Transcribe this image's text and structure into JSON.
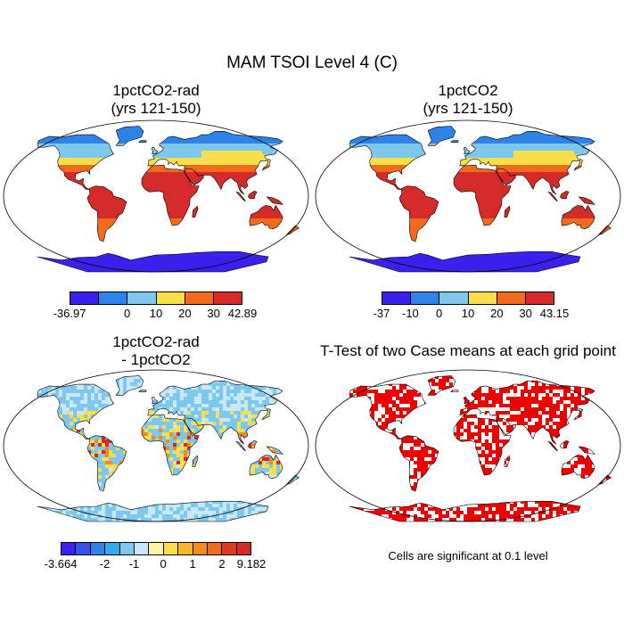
{
  "title": "MAM TSOI Level 4 (C)",
  "panels": [
    {
      "title1": "1pctCO2-rad",
      "title2": "(yrs 121-150)"
    },
    {
      "title1": "1pctCO2",
      "title2": "(yrs 121-150)"
    },
    {
      "title1": "1pctCO2-rad",
      "title2": "- 1pctCO2"
    },
    {
      "title1": "T-Test of two Case means at each grid point",
      "title2": ""
    }
  ],
  "colorbars": [
    {
      "colors": [
        "#3b21ee",
        "#2e83e8",
        "#7ec8ee",
        "#f9e04a",
        "#f26a1b",
        "#d42a2a"
      ],
      "labels": [
        "-36.97",
        "0",
        "10",
        "20",
        "30",
        "42.89"
      ]
    },
    {
      "colors": [
        "#3b21ee",
        "#2e83e8",
        "#7ec8ee",
        "#f9e04a",
        "#f26a1b",
        "#d42a2a"
      ],
      "labels": [
        "-37",
        "-10",
        "0",
        "10",
        "20",
        "30",
        "43.15"
      ]
    },
    {
      "colors": [
        "#3b21ee",
        "#3552f0",
        "#2e83e8",
        "#38a8ef",
        "#7ec8ee",
        "#c9e8f6",
        "#fdf6a5",
        "#f9e04a",
        "#f9b52c",
        "#f28a1d",
        "#f26a1b",
        "#e43a1c",
        "#d42a2a"
      ],
      "labels": [
        "-3.664",
        "-2",
        "-1",
        "0",
        "1",
        "2",
        "9.182"
      ]
    }
  ],
  "note": "Cells are significant at 0.1 level",
  "palettes": {
    "abs": {
      "polar": "#2e83e8",
      "cool": "#7ec8ee",
      "mild": "#f9e04a",
      "warm": "#f26a1b",
      "hot": "#d42a2a",
      "antarctic": "#3b21ee"
    },
    "diff": {
      "base": "#7ec8ee",
      "light": "#c9e8f6",
      "yellow": "#f9e04a",
      "orange": "#f28a1d",
      "red": "#d42a2a"
    },
    "ttest": {
      "sig": "#ee0000"
    }
  }
}
